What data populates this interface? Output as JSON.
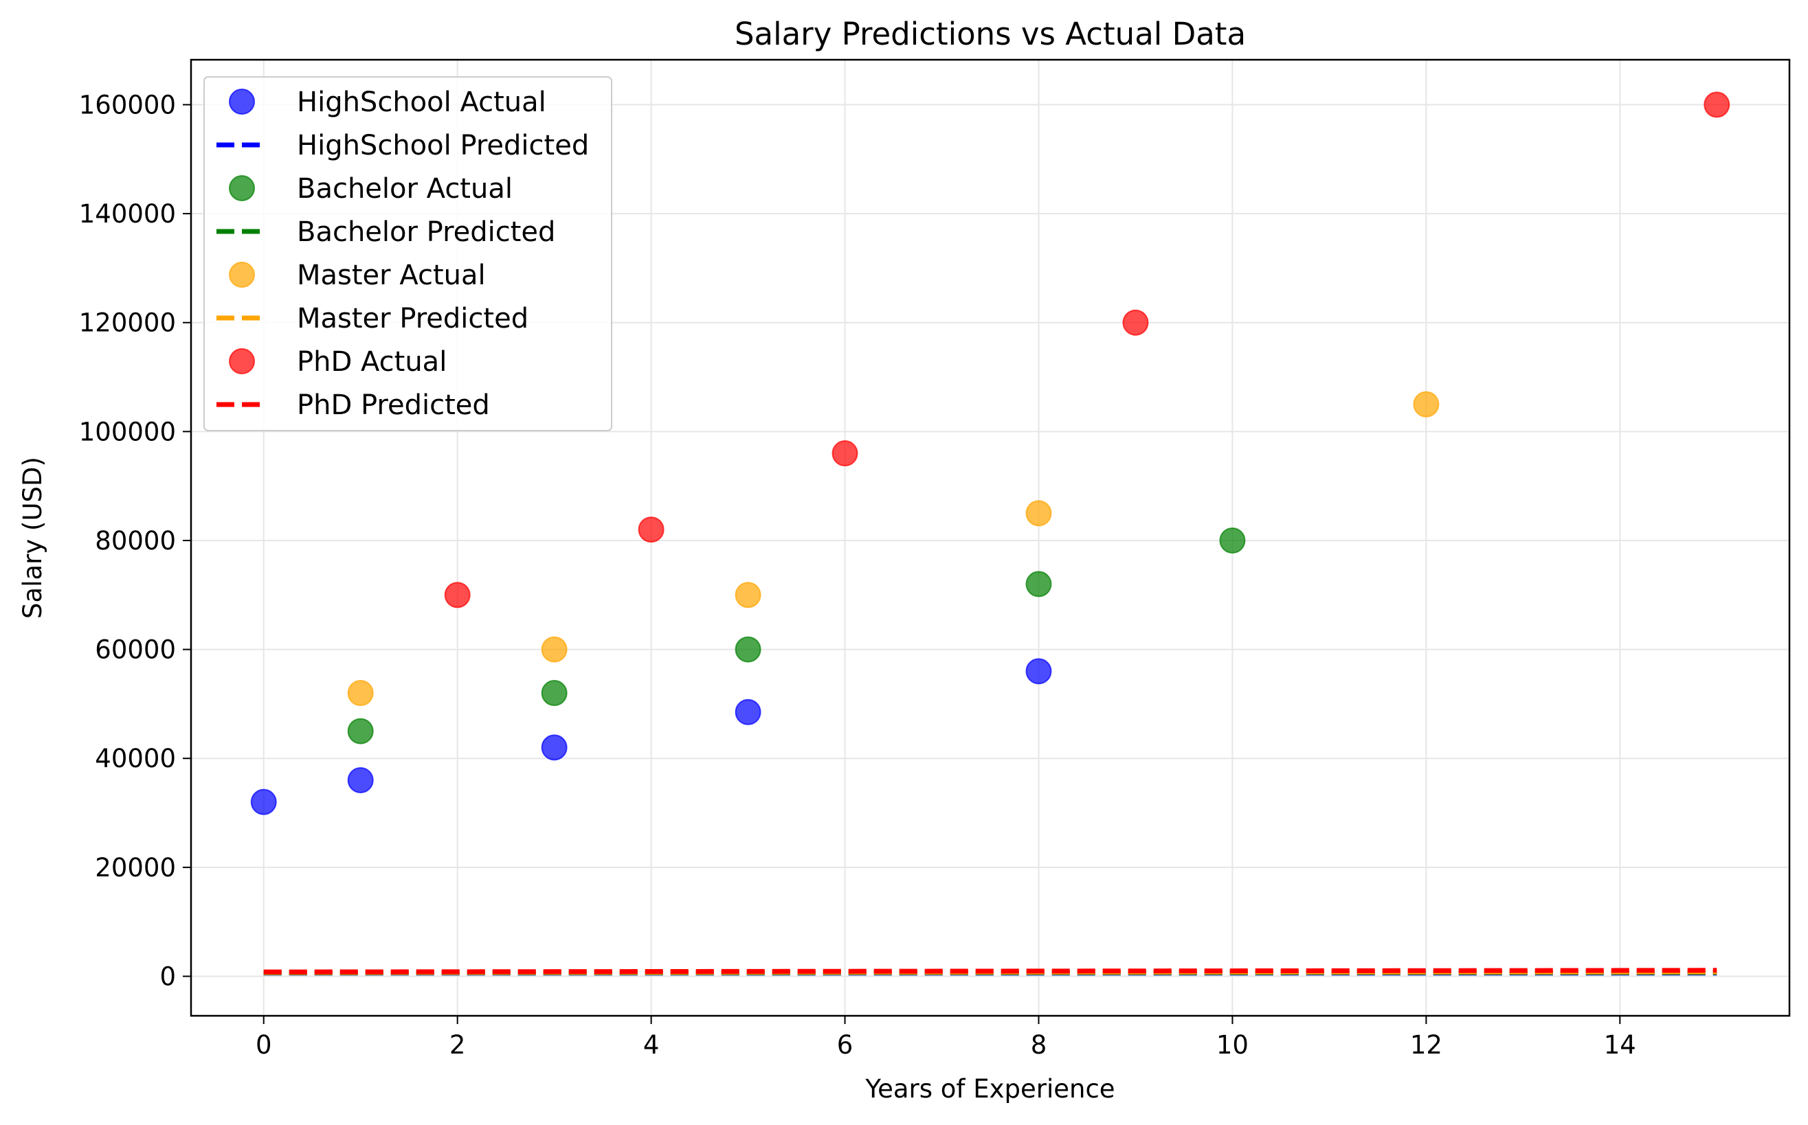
{
  "chart_data": {
    "type": "scatter",
    "title": "Salary Predictions vs Actual Data",
    "xlabel": "Years of Experience",
    "ylabel": "Salary (USD)",
    "xlim": [
      -0.75,
      15.75
    ],
    "ylim": [
      -7250,
      168250
    ],
    "xticks": [
      0,
      2,
      4,
      6,
      8,
      10,
      12,
      14
    ],
    "yticks": [
      0,
      20000,
      40000,
      60000,
      80000,
      100000,
      120000,
      140000,
      160000
    ],
    "grid": true,
    "legend_position": "top-left",
    "series": [
      {
        "name": "HighSchool Actual",
        "kind": "scatter",
        "color": "#0000ff",
        "points": [
          [
            0,
            32000
          ],
          [
            1,
            36000
          ],
          [
            3,
            42000
          ],
          [
            5,
            48500
          ],
          [
            8,
            56000
          ]
        ]
      },
      {
        "name": "HighSchool Predicted",
        "kind": "dashed-line",
        "color": "#0000ff",
        "points": [
          [
            0,
            600
          ],
          [
            15,
            600
          ]
        ]
      },
      {
        "name": "Bachelor Actual",
        "kind": "scatter",
        "color": "#008000",
        "points": [
          [
            1,
            45000
          ],
          [
            3,
            52000
          ],
          [
            5,
            60000
          ],
          [
            8,
            72000
          ],
          [
            10,
            80000
          ]
        ]
      },
      {
        "name": "Bachelor Predicted",
        "kind": "dashed-line",
        "color": "#008000",
        "points": [
          [
            0,
            650
          ],
          [
            15,
            700
          ]
        ]
      },
      {
        "name": "Master Actual",
        "kind": "scatter",
        "color": "#ffa500",
        "points": [
          [
            1,
            52000
          ],
          [
            3,
            60000
          ],
          [
            5,
            70000
          ],
          [
            8,
            85000
          ],
          [
            12,
            105000
          ]
        ]
      },
      {
        "name": "Master Predicted",
        "kind": "dashed-line",
        "color": "#ffa500",
        "points": [
          [
            0,
            700
          ],
          [
            15,
            800
          ]
        ]
      },
      {
        "name": "PhD Actual",
        "kind": "scatter",
        "color": "#ff0000",
        "points": [
          [
            2,
            70000
          ],
          [
            4,
            82000
          ],
          [
            6,
            96000
          ],
          [
            9,
            120000
          ],
          [
            15,
            160000
          ]
        ]
      },
      {
        "name": "PhD Predicted",
        "kind": "dashed-line",
        "color": "#ff0000",
        "points": [
          [
            0,
            800
          ],
          [
            15,
            1100
          ]
        ]
      }
    ]
  }
}
